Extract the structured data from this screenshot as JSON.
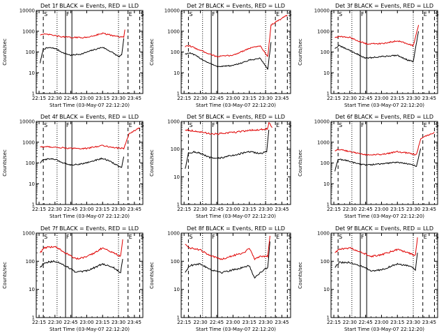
{
  "figure": {
    "xlabel": "Start Time (03-May-07 22:12:20)",
    "ylabel": "Counts/sec"
  },
  "colors": {
    "events": "#000000",
    "lld": "#e00000",
    "axes": "#000000",
    "background": "#ffffff"
  },
  "chart_data": [
    {
      "type": "line",
      "title": "Det 1f BLACK = Events, RED = LLD",
      "xlabel": "Start Time (03-May-07 22:12:20)",
      "ylabel": "Counts/sec",
      "yscale": "log",
      "ylim": [
        1,
        10000
      ],
      "xlim": [
        "22:12:20",
        "23:53:00"
      ],
      "xticks": [
        "22:15",
        "22:30",
        "22:45",
        "23:00",
        "23:15",
        "23:30",
        "23:45"
      ],
      "yticks": [
        "1",
        "10",
        "100",
        "1000",
        "10000"
      ],
      "markers": {
        "solid": [
          "22:40",
          "22:46"
        ],
        "dotted": [
          "22:32",
          "23:30"
        ],
        "dashed": [
          "22:19",
          "23:39",
          "23:50"
        ],
        "labels": [
          "S",
          "F",
          "E",
          "S"
        ]
      },
      "series": [
        {
          "name": "Events",
          "color": "black",
          "x": [
            "22:16",
            "22:19",
            "22:24",
            "22:30",
            "22:38",
            "22:45",
            "22:55",
            "23:05",
            "23:15",
            "23:25",
            "23:30",
            "23:33",
            "23:35"
          ],
          "y": [
            30,
            140,
            160,
            150,
            90,
            70,
            80,
            120,
            170,
            90,
            60,
            70,
            450
          ]
        },
        {
          "name": "LLD",
          "color": "red",
          "x": [
            "22:16",
            "22:24",
            "22:35",
            "22:45",
            "23:00",
            "23:15",
            "23:25",
            "23:35",
            "23:36"
          ],
          "y": [
            700,
            700,
            550,
            500,
            500,
            800,
            600,
            500,
            1200
          ]
        }
      ]
    },
    {
      "type": "line",
      "title": "Det 2f BLACK = Events, RED = LLD",
      "xlabel": "Start Time (03-May-07 22:12:20)",
      "ylabel": "Counts/sec",
      "yscale": "log",
      "ylim": [
        1,
        10000
      ],
      "xlim": [
        "22:12:20",
        "23:53:00"
      ],
      "xticks": [
        "22:15",
        "22:30",
        "22:45",
        "23:00",
        "23:15",
        "23:30",
        "23:45"
      ],
      "yticks": [
        "1",
        "10",
        "100",
        "1000",
        "10000"
      ],
      "markers": {
        "solid": [
          "22:40",
          "22:46"
        ],
        "dotted": [
          "22:32",
          "23:30"
        ],
        "dashed": [
          "22:19",
          "23:39",
          "23:50"
        ],
        "labels": [
          "S",
          "F",
          "E",
          "S"
        ]
      },
      "series": [
        {
          "name": "Events",
          "color": "black",
          "x": [
            "22:16",
            "22:20",
            "22:25",
            "22:35",
            "22:45",
            "23:00",
            "23:15",
            "23:25",
            "23:32",
            "23:35"
          ],
          "y": [
            80,
            90,
            70,
            35,
            20,
            22,
            40,
            50,
            15,
            300
          ]
        },
        {
          "name": "LLD",
          "color": "red",
          "x": [
            "22:16",
            "22:20",
            "22:30",
            "22:45",
            "23:00",
            "23:15",
            "23:25",
            "23:32",
            "23:35",
            "23:50"
          ],
          "y": [
            180,
            200,
            120,
            60,
            70,
            150,
            200,
            60,
            2000,
            6000
          ]
        }
      ]
    },
    {
      "type": "line",
      "title": "Det 3f BLACK = Events, RED = LLD",
      "xlabel": "Start Time (03-May-07 22:12:20)",
      "ylabel": "Counts/sec",
      "yscale": "log",
      "ylim": [
        1,
        10000
      ],
      "xlim": [
        "22:12:20",
        "23:53:00"
      ],
      "xticks": [
        "22:15",
        "22:30",
        "22:45",
        "23:00",
        "23:15",
        "23:30",
        "23:45"
      ],
      "yticks": [
        "1",
        "10",
        "100",
        "1000",
        "10000"
      ],
      "markers": {
        "solid": [
          "22:40",
          "22:46"
        ],
        "dotted": [
          "22:32",
          "23:30"
        ],
        "dashed": [
          "22:19",
          "23:39",
          "23:50"
        ],
        "labels": [
          "S",
          "F",
          "E",
          "S"
        ]
      },
      "series": [
        {
          "name": "Events",
          "color": "black",
          "x": [
            "22:16",
            "22:20",
            "22:30",
            "22:45",
            "23:00",
            "23:15",
            "23:25",
            "23:30",
            "23:35"
          ],
          "y": [
            150,
            200,
            120,
            50,
            60,
            70,
            40,
            35,
            1000
          ]
        },
        {
          "name": "LLD",
          "color": "red",
          "x": [
            "22:16",
            "22:20",
            "22:30",
            "22:45",
            "23:00",
            "23:15",
            "23:25",
            "23:30",
            "23:35"
          ],
          "y": [
            500,
            550,
            500,
            250,
            250,
            350,
            250,
            200,
            2000
          ]
        }
      ]
    },
    {
      "type": "line",
      "title": "Det 4f BLACK = Events, RED = LLD",
      "xlabel": "Start Time (03-May-07 22:12:20)",
      "ylabel": "Counts/sec",
      "yscale": "log",
      "ylim": [
        1,
        10000
      ],
      "xlim": [
        "22:12:20",
        "23:53:00"
      ],
      "xticks": [
        "22:15",
        "22:30",
        "22:45",
        "23:00",
        "23:15",
        "23:30",
        "23:45"
      ],
      "yticks": [
        "1",
        "10",
        "100",
        "1000",
        "10000"
      ],
      "markers": {
        "solid": [
          "22:40",
          "22:46"
        ],
        "dotted": [
          "22:32",
          "23:30"
        ],
        "dashed": [
          "22:19",
          "23:39",
          "23:50"
        ],
        "labels": [
          "S",
          "F",
          "E",
          "S"
        ]
      },
      "series": [
        {
          "name": "Events",
          "color": "black",
          "x": [
            "22:16",
            "22:19",
            "22:24",
            "22:30",
            "22:38",
            "22:45",
            "22:55",
            "23:05",
            "23:15",
            "23:25",
            "23:30",
            "23:33",
            "23:35"
          ],
          "y": [
            100,
            140,
            160,
            150,
            100,
            80,
            90,
            120,
            170,
            100,
            70,
            60,
            200
          ]
        },
        {
          "name": "LLD",
          "color": "red",
          "x": [
            "22:16",
            "22:24",
            "22:35",
            "22:45",
            "23:00",
            "23:15",
            "23:25",
            "23:35",
            "23:40",
            "23:50"
          ],
          "y": [
            600,
            600,
            550,
            500,
            500,
            700,
            550,
            500,
            2500,
            5000
          ]
        }
      ]
    },
    {
      "type": "line",
      "title": "Det 5f BLACK = Events, RED = LLD",
      "xlabel": "Start Time (03-May-07 22:12:20)",
      "ylabel": "Counts/sec",
      "yscale": "log",
      "ylim": [
        1,
        1000
      ],
      "xlim": [
        "22:12:20",
        "23:53:00"
      ],
      "xticks": [
        "22:15",
        "22:30",
        "22:45",
        "23:00",
        "23:15",
        "23:30",
        "23:45"
      ],
      "yticks": [
        "1",
        "10",
        "100",
        "1000"
      ],
      "markers": {
        "solid": [
          "22:40",
          "22:46"
        ],
        "dotted": [
          "22:32",
          "23:30"
        ],
        "dashed": [
          "22:19",
          "23:39",
          "23:50"
        ],
        "labels": [
          "S",
          "F",
          "E",
          "S"
        ]
      },
      "series": [
        {
          "name": "Events",
          "color": "black",
          "x": [
            "22:16",
            "22:19",
            "22:24",
            "22:30",
            "22:38",
            "22:45",
            "23:00",
            "23:15",
            "23:25",
            "23:31",
            "23:33"
          ],
          "y": [
            20,
            70,
            80,
            70,
            50,
            45,
            60,
            80,
            70,
            80,
            500
          ]
        },
        {
          "name": "LLD",
          "color": "red",
          "x": [
            "22:16",
            "22:25",
            "22:35",
            "22:45",
            "23:00",
            "23:15",
            "23:25",
            "23:32",
            "23:33",
            "23:36"
          ],
          "y": [
            500,
            450,
            380,
            350,
            400,
            480,
            500,
            550,
            900,
            600
          ]
        }
      ]
    },
    {
      "type": "line",
      "title": "Det 6f BLACK = Events, RED = LLD",
      "xlabel": "Start Time (03-May-07 22:12:20)",
      "ylabel": "Counts/sec",
      "yscale": "log",
      "ylim": [
        1,
        10000
      ],
      "xlim": [
        "22:12:20",
        "23:53:00"
      ],
      "xticks": [
        "22:15",
        "22:30",
        "22:45",
        "23:00",
        "23:15",
        "23:30",
        "23:45"
      ],
      "yticks": [
        "1",
        "10",
        "100",
        "1000",
        "10000"
      ],
      "markers": {
        "solid": [
          "22:40",
          "22:46"
        ],
        "dotted": [
          "22:32",
          "23:30"
        ],
        "dashed": [
          "22:19",
          "23:39",
          "23:50"
        ],
        "labels": [
          "S",
          "F",
          "E",
          "S"
        ]
      },
      "series": [
        {
          "name": "Events",
          "color": "black",
          "x": [
            "22:16",
            "22:19",
            "22:25",
            "22:35",
            "22:45",
            "23:00",
            "23:15",
            "23:25",
            "23:33",
            "23:37"
          ],
          "y": [
            40,
            150,
            140,
            100,
            80,
            90,
            110,
            90,
            70,
            500
          ]
        },
        {
          "name": "LLD",
          "color": "red",
          "x": [
            "22:16",
            "22:20",
            "22:30",
            "22:45",
            "23:00",
            "23:15",
            "23:25",
            "23:33",
            "23:37",
            "23:50"
          ],
          "y": [
            400,
            450,
            350,
            250,
            250,
            350,
            300,
            250,
            1500,
            3000
          ]
        }
      ]
    },
    {
      "type": "line",
      "title": "Det 7f BLACK = Events, RED = LLD",
      "xlabel": "Start Time (03-May-07 22:12:20)",
      "ylabel": "Counts/sec",
      "yscale": "log",
      "ylim": [
        1,
        1000
      ],
      "xlim": [
        "22:12:20",
        "23:53:00"
      ],
      "xticks": [
        "22:15",
        "22:30",
        "22:45",
        "23:00",
        "23:15",
        "23:30",
        "23:45"
      ],
      "yticks": [
        "1",
        "10",
        "100",
        "1000"
      ],
      "markers": {
        "solid": [
          "22:40",
          "22:46"
        ],
        "dotted": [
          "22:32",
          "23:30"
        ],
        "dashed": [
          "22:19",
          "23:39",
          "23:50"
        ],
        "labels": [
          "S",
          "F",
          "E",
          "S"
        ]
      },
      "series": [
        {
          "name": "Events",
          "color": "black",
          "x": [
            "22:16",
            "22:20",
            "22:30",
            "22:40",
            "22:50",
            "23:00",
            "23:15",
            "23:25",
            "23:32",
            "23:34"
          ],
          "y": [
            60,
            90,
            100,
            70,
            40,
            45,
            80,
            60,
            40,
            120
          ]
        },
        {
          "name": "LLD",
          "color": "red",
          "x": [
            "22:16",
            "22:20",
            "22:30",
            "22:40",
            "22:50",
            "23:00",
            "23:15",
            "23:25",
            "23:32",
            "23:34"
          ],
          "y": [
            200,
            300,
            330,
            200,
            120,
            140,
            300,
            200,
            150,
            600
          ]
        }
      ]
    },
    {
      "type": "line",
      "title": "Det 8f BLACK = Events, RED = LLD",
      "xlabel": "Start Time (03-May-07 22:12:20)",
      "ylabel": "Counts/sec",
      "yscale": "log",
      "ylim": [
        1,
        1000
      ],
      "xlim": [
        "22:12:20",
        "23:53:00"
      ],
      "xticks": [
        "22:15",
        "22:30",
        "22:45",
        "23:00",
        "23:15",
        "23:30",
        "23:45"
      ],
      "yticks": [
        "1",
        "10",
        "100",
        "1000"
      ],
      "markers": {
        "solid": [
          "22:40",
          "22:46"
        ],
        "dotted": [
          "22:32",
          "23:30"
        ],
        "dashed": [
          "22:19",
          "23:39",
          "23:50"
        ],
        "labels": [
          "S",
          "F",
          "E",
          "S"
        ]
      },
      "series": [
        {
          "name": "Events",
          "color": "black",
          "x": [
            "22:16",
            "22:20",
            "22:30",
            "22:40",
            "22:50",
            "23:00",
            "23:10",
            "23:15",
            "23:20",
            "23:25",
            "23:32",
            "23:34"
          ],
          "y": [
            40,
            70,
            80,
            50,
            40,
            50,
            60,
            70,
            25,
            40,
            60,
            500
          ]
        },
        {
          "name": "LLD",
          "color": "red",
          "x": [
            "22:16",
            "22:20",
            "22:30",
            "22:40",
            "22:50",
            "23:00",
            "23:10",
            "23:15",
            "23:20",
            "23:25",
            "23:32",
            "23:34"
          ],
          "y": [
            400,
            300,
            250,
            150,
            120,
            160,
            200,
            300,
            120,
            150,
            150,
            800
          ]
        }
      ]
    },
    {
      "type": "line",
      "title": "Det 9f BLACK = Events, RED = LLD",
      "xlabel": "Start Time (03-May-07 22:12:20)",
      "ylabel": "Counts/sec",
      "yscale": "log",
      "ylim": [
        1,
        1000
      ],
      "xlim": [
        "22:12:20",
        "23:53:00"
      ],
      "xticks": [
        "22:15",
        "22:30",
        "22:45",
        "23:00",
        "23:15",
        "23:30",
        "23:45"
      ],
      "yticks": [
        "1",
        "10",
        "100",
        "1000"
      ],
      "markers": {
        "solid": [
          "22:40",
          "22:46"
        ],
        "dotted": [
          "22:32",
          "23:30"
        ],
        "dashed": [
          "22:19",
          "23:39",
          "23:50"
        ],
        "labels": [
          "S",
          "F",
          "E",
          "S"
        ]
      },
      "series": [
        {
          "name": "Events",
          "color": "black",
          "x": [
            "22:16",
            "22:20",
            "22:30",
            "22:40",
            "22:50",
            "23:00",
            "23:15",
            "23:25",
            "23:32",
            "23:34"
          ],
          "y": [
            60,
            90,
            90,
            70,
            45,
            50,
            80,
            70,
            50,
            200
          ]
        },
        {
          "name": "LLD",
          "color": "red",
          "x": [
            "22:16",
            "22:20",
            "22:30",
            "22:40",
            "22:50",
            "23:00",
            "23:15",
            "23:25",
            "23:32",
            "23:34"
          ],
          "y": [
            200,
            260,
            300,
            220,
            150,
            170,
            260,
            200,
            160,
            700
          ]
        }
      ]
    }
  ]
}
